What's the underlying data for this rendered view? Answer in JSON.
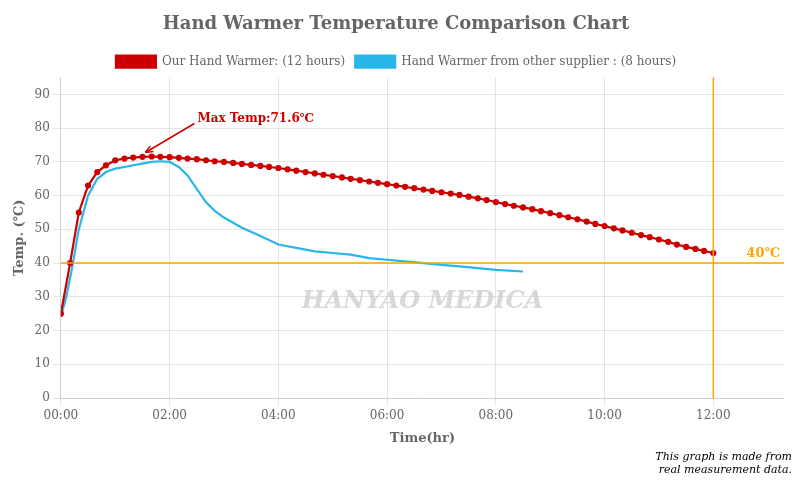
{
  "chart_data": {
    "type": "line",
    "title": "Hand Warmer Temperature Comparison Chart",
    "xlabel": "Time(hr)",
    "ylabel": [
      "Temp.",
      "(℃)"
    ],
    "xlim": [
      0,
      13.3
    ],
    "xticks": [
      {
        "value": 0,
        "label": "00:00"
      },
      {
        "value": 2,
        "label": "02:00"
      },
      {
        "value": 4,
        "label": "04:00"
      },
      {
        "value": 6,
        "label": "06:00"
      },
      {
        "value": 8,
        "label": "08:00"
      },
      {
        "value": 10,
        "label": "10:00"
      },
      {
        "value": 12,
        "label": "12:00"
      }
    ],
    "ylim": [
      0,
      95
    ],
    "yticks": [
      0,
      10,
      20,
      30,
      40,
      50,
      60,
      70,
      80,
      90
    ],
    "grid": true,
    "series": [
      {
        "name": "Our Hand Warmer:",
        "duration": "(12 hours)",
        "color": "#cc0000",
        "marker": "o",
        "x": [
          0.0,
          0.17,
          0.33,
          0.5,
          0.67,
          0.83,
          1.0,
          1.17,
          1.33,
          1.5,
          1.67,
          1.83,
          2.0,
          2.17,
          2.33,
          2.5,
          2.67,
          2.83,
          3.0,
          3.17,
          3.33,
          3.5,
          3.67,
          3.83,
          4.0,
          4.17,
          4.33,
          4.5,
          4.67,
          4.83,
          5.0,
          5.17,
          5.33,
          5.5,
          5.67,
          5.83,
          6.0,
          6.17,
          6.33,
          6.5,
          6.67,
          6.83,
          7.0,
          7.17,
          7.33,
          7.5,
          7.67,
          7.83,
          8.0,
          8.17,
          8.33,
          8.5,
          8.67,
          8.83,
          9.0,
          9.17,
          9.33,
          9.5,
          9.67,
          9.83,
          10.0,
          10.17,
          10.33,
          10.5,
          10.67,
          10.83,
          11.0,
          11.17,
          11.33,
          11.5,
          11.67,
          11.83,
          12.0
        ],
        "values": [
          25,
          40,
          55,
          63,
          67,
          69,
          70.5,
          71.0,
          71.3,
          71.5,
          71.6,
          71.5,
          71.4,
          71.2,
          71.0,
          70.8,
          70.5,
          70.2,
          70.0,
          69.7,
          69.4,
          69.1,
          68.8,
          68.5,
          68.2,
          67.8,
          67.4,
          67.0,
          66.6,
          66.2,
          65.8,
          65.4,
          65.0,
          64.6,
          64.2,
          63.8,
          63.4,
          63.0,
          62.6,
          62.2,
          61.8,
          61.4,
          61.0,
          60.6,
          60.2,
          59.7,
          59.2,
          58.7,
          58.1,
          57.5,
          57.0,
          56.5,
          56.0,
          55.4,
          54.8,
          54.2,
          53.6,
          53.0,
          52.3,
          51.6,
          51.0,
          50.3,
          49.7,
          49.0,
          48.3,
          47.7,
          47.0,
          46.3,
          45.5,
          44.8,
          44.2,
          43.6,
          43.0
        ]
      },
      {
        "name": "Hand Warmer from other supplier :",
        "duration": "(8 hours)",
        "color": "#29b6e8",
        "x": [
          0.0,
          0.1,
          0.2,
          0.33,
          0.5,
          0.67,
          0.83,
          1.0,
          1.17,
          1.33,
          1.5,
          1.67,
          1.83,
          2.0,
          2.17,
          2.33,
          2.5,
          2.67,
          2.83,
          3.0,
          3.33,
          3.67,
          4.0,
          4.33,
          4.67,
          5.0,
          5.33,
          5.67,
          6.0,
          6.33,
          6.67,
          7.0,
          7.33,
          7.67,
          8.0,
          8.5
        ],
        "values": [
          24,
          30,
          38,
          50,
          60,
          65,
          67,
          68,
          68.5,
          69,
          69.5,
          70,
          70.2,
          70.0,
          68.5,
          66.0,
          62.0,
          58.0,
          55.5,
          53.5,
          50.5,
          48.0,
          45.5,
          44.5,
          43.5,
          43.0,
          42.5,
          41.5,
          41.0,
          40.5,
          40.0,
          39.5,
          39.0,
          38.5,
          38.0,
          37.5
        ]
      }
    ],
    "annotations": [
      {
        "type": "hline",
        "y": 40,
        "text": "40℃",
        "color": "#FFA500"
      },
      {
        "type": "vline",
        "x": 12,
        "color": "#FFA500"
      },
      {
        "type": "arrow",
        "x": 1.5,
        "y": 71.6,
        "text": "Max Temp:71.6℃",
        "color": "#cc0000"
      },
      {
        "type": "watermark",
        "text": "HANYAO MEDICA",
        "color": "#c8c8c8"
      },
      {
        "type": "note",
        "text": "This graph is made from\nreal measurement data."
      }
    ]
  }
}
